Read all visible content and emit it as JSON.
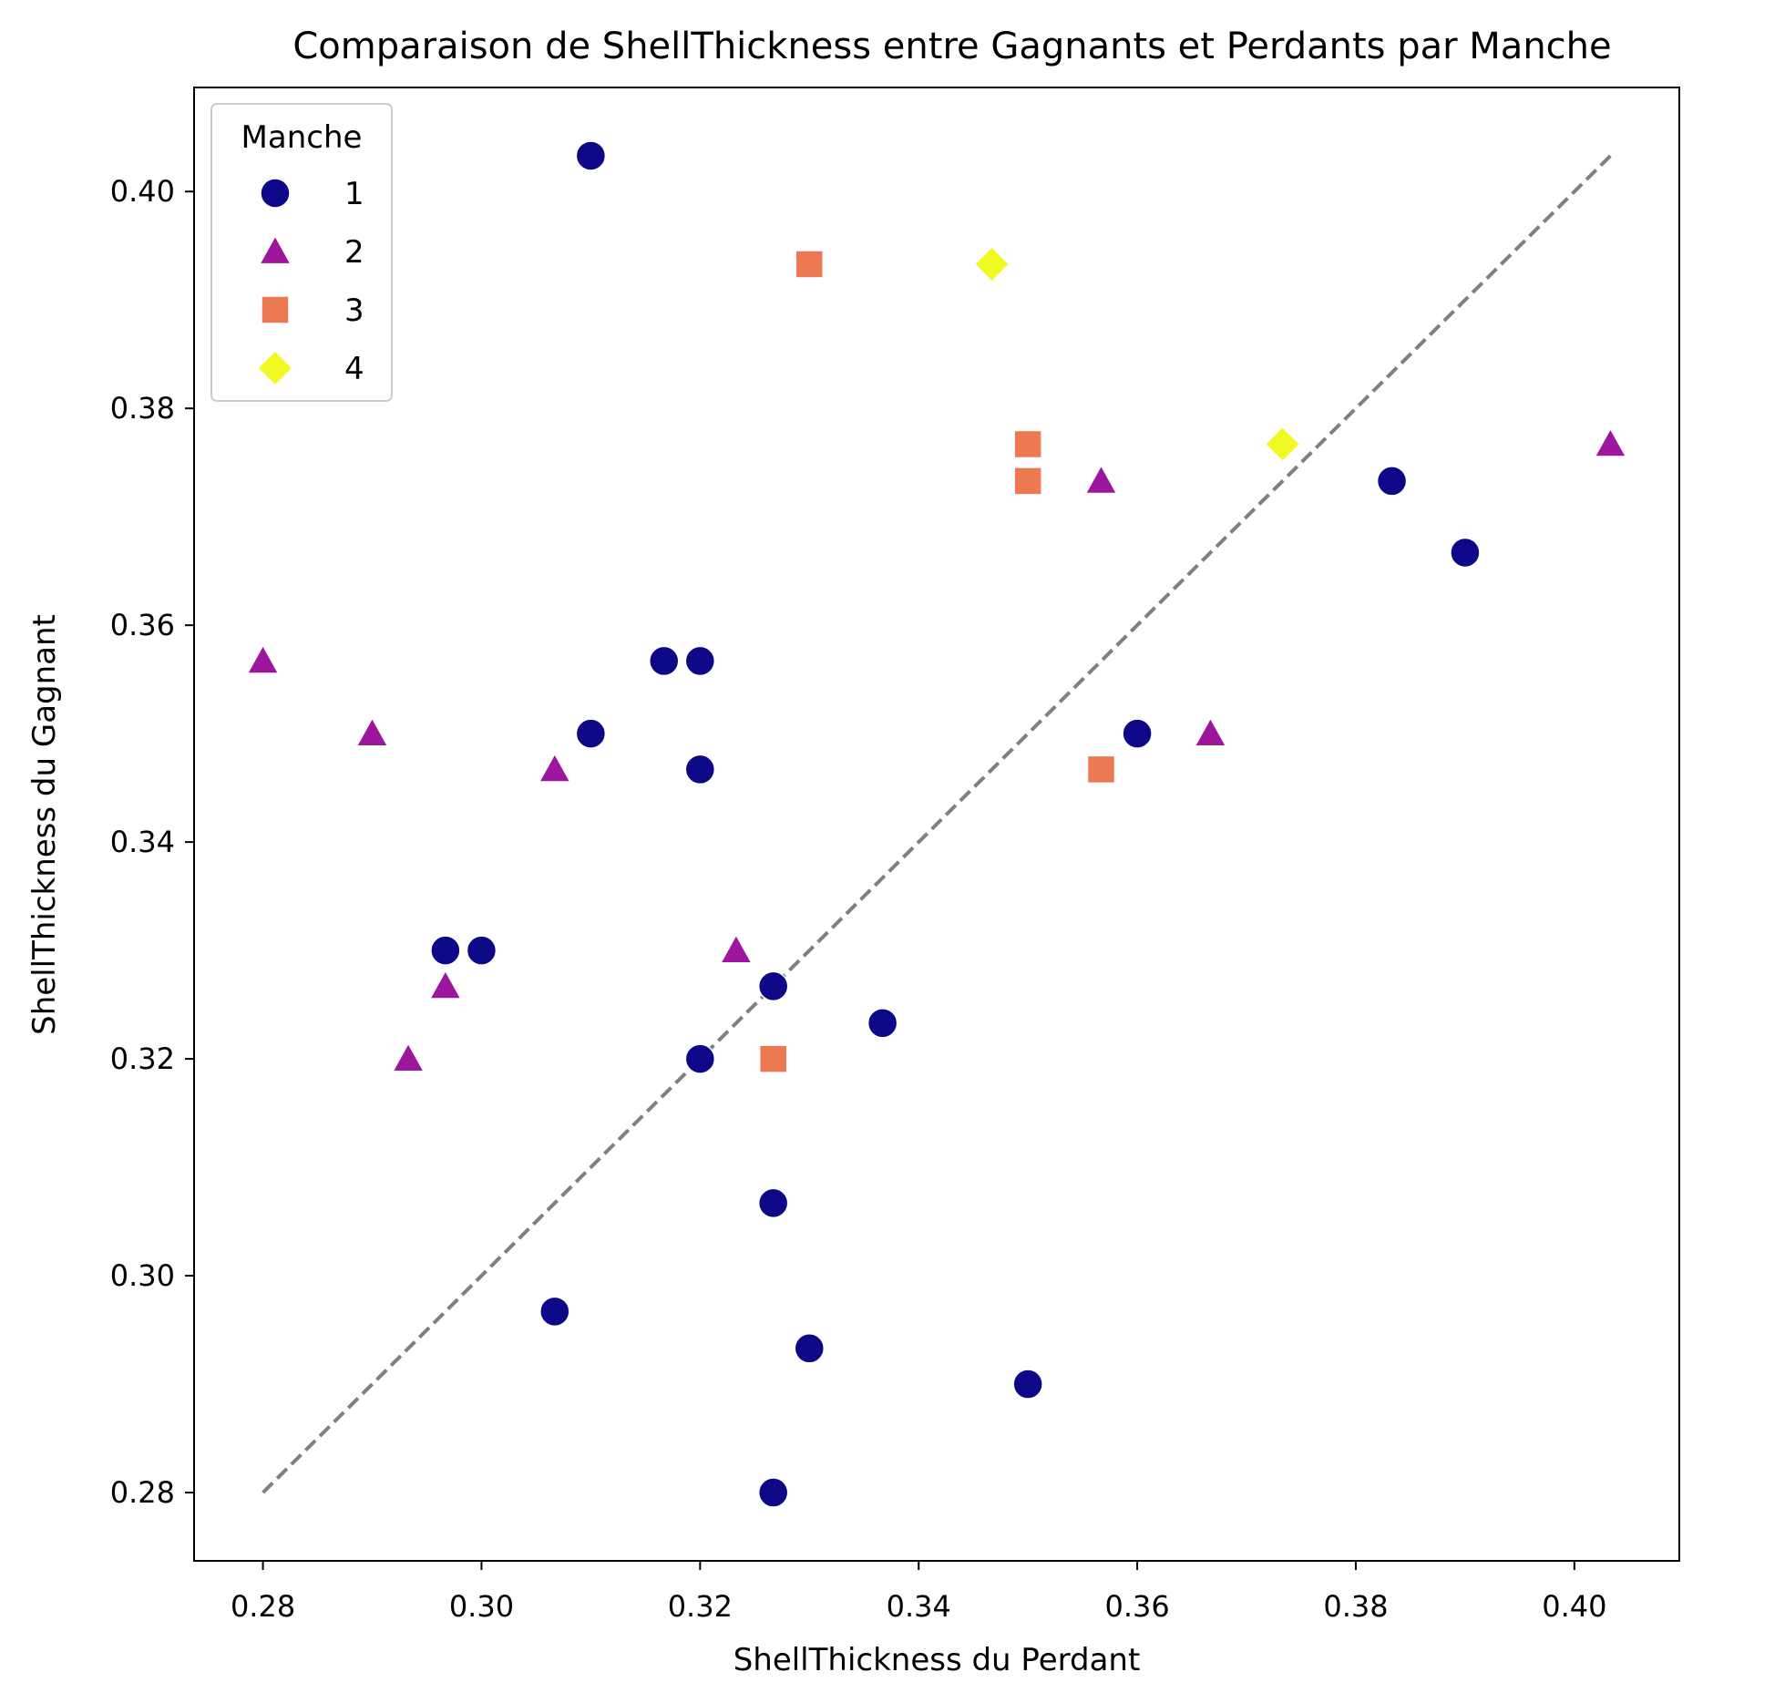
{
  "chart_data": {
    "type": "scatter",
    "title": "Comparaison de ShellThickness entre Gagnants et Perdants par Manche",
    "xlabel": "ShellThickness du Perdant",
    "ylabel": "ShellThickness du Gagnant",
    "xlim": [
      0.2737,
      0.4096
    ],
    "ylim": [
      0.2737,
      0.4096
    ],
    "xticks": [
      "0.28",
      "0.30",
      "0.32",
      "0.34",
      "0.36",
      "0.38",
      "0.40"
    ],
    "yticks": [
      "0.28",
      "0.30",
      "0.32",
      "0.34",
      "0.36",
      "0.38",
      "0.40"
    ],
    "grid": false,
    "legend": {
      "title": "Manche",
      "placement": "top-left"
    },
    "reference_line": {
      "style": "dashed",
      "color": "#808080",
      "from": [
        0.28,
        0.28
      ],
      "to": [
        0.4033,
        0.4033
      ]
    },
    "series": [
      {
        "name": "1",
        "marker": "circle",
        "color": "#0d0887",
        "points": [
          [
            0.31,
            0.4033
          ],
          [
            0.3167,
            0.3567
          ],
          [
            0.32,
            0.3567
          ],
          [
            0.31,
            0.35
          ],
          [
            0.32,
            0.3467
          ],
          [
            0.2967,
            0.33
          ],
          [
            0.3,
            0.33
          ],
          [
            0.3267,
            0.3267
          ],
          [
            0.3367,
            0.3233
          ],
          [
            0.32,
            0.32
          ],
          [
            0.3267,
            0.3067
          ],
          [
            0.3067,
            0.2967
          ],
          [
            0.33,
            0.2933
          ],
          [
            0.35,
            0.29
          ],
          [
            0.3267,
            0.28
          ],
          [
            0.36,
            0.35
          ],
          [
            0.3833,
            0.3733
          ],
          [
            0.39,
            0.3667
          ]
        ]
      },
      {
        "name": "2",
        "marker": "triangle",
        "color": "#9c179e",
        "points": [
          [
            0.28,
            0.3567
          ],
          [
            0.29,
            0.35
          ],
          [
            0.3067,
            0.3467
          ],
          [
            0.2967,
            0.3267
          ],
          [
            0.2933,
            0.32
          ],
          [
            0.3233,
            0.33
          ],
          [
            0.3567,
            0.3733
          ],
          [
            0.3667,
            0.35
          ],
          [
            0.4033,
            0.3767
          ]
        ]
      },
      {
        "name": "3",
        "marker": "square",
        "color": "#ed7953",
        "points": [
          [
            0.33,
            0.3933
          ],
          [
            0.35,
            0.3767
          ],
          [
            0.35,
            0.3733
          ],
          [
            0.3567,
            0.3467
          ],
          [
            0.3267,
            0.32
          ]
        ]
      },
      {
        "name": "4",
        "marker": "diamond",
        "color": "#f0f921",
        "points": [
          [
            0.3467,
            0.3933
          ],
          [
            0.3733,
            0.3767
          ]
        ]
      }
    ]
  }
}
